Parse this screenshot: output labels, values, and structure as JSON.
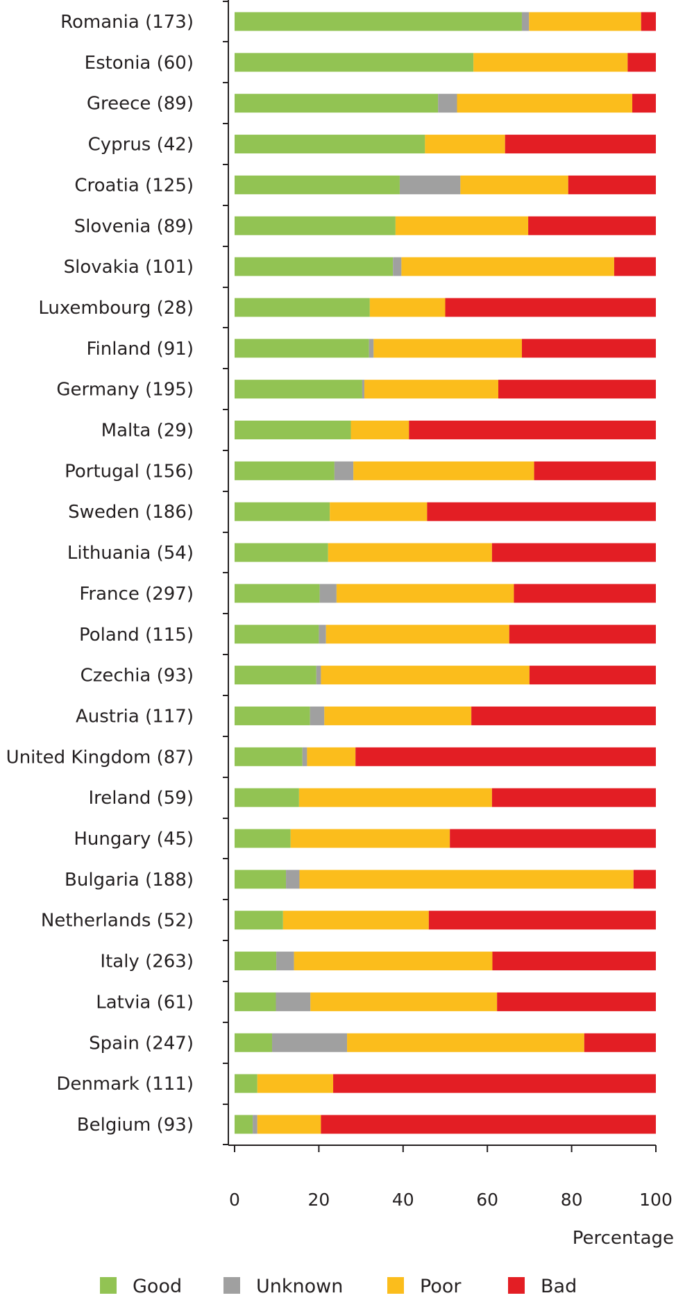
{
  "chart_data": {
    "type": "bar",
    "orientation": "horizontal",
    "stacked": true,
    "categories": [
      "Romania (173)",
      "Estonia (60)",
      "Greece (89)",
      "Cyprus (42)",
      "Croatia (125)",
      "Slovenia (89)",
      "Slovakia (101)",
      "Luxembourg (28)",
      "Finland (91)",
      "Germany (195)",
      "Malta (29)",
      "Portugal (156)",
      "Sweden (186)",
      "Lithuania (54)",
      "France (297)",
      "Poland  (115)",
      "Czechia (93)",
      "Austria (117)",
      "United Kingdom (87)",
      "Ireland (59)",
      "Hungary (45)",
      "Bulgaria (188)",
      "Netherlands (52)",
      "Italy (263)",
      "Latvia (61)",
      "Spain (247)",
      "Denmark (111)",
      "Belgium (93)"
    ],
    "series": [
      {
        "name": "Good",
        "color": "#92c353",
        "values": [
          68.2,
          56.7,
          48.3,
          45.2,
          39.2,
          38.2,
          37.6,
          32.1,
          31.9,
          30.3,
          27.6,
          23.7,
          22.6,
          22.2,
          20.2,
          20.0,
          19.4,
          17.9,
          16.1,
          15.3,
          13.3,
          12.2,
          11.5,
          9.9,
          9.8,
          8.9,
          5.4,
          4.3
        ]
      },
      {
        "name": "Unknown",
        "color": "#a0a0a0",
        "values": [
          1.7,
          0,
          4.5,
          0,
          14.4,
          0,
          2.0,
          0,
          1.1,
          0.5,
          0,
          4.5,
          0,
          0,
          4.0,
          1.7,
          1.1,
          3.4,
          1.1,
          0,
          0,
          3.2,
          0,
          4.2,
          8.2,
          17.8,
          0,
          1.1
        ]
      },
      {
        "name": "Poor",
        "color": "#fbbd1c",
        "values": [
          26.6,
          36.6,
          41.6,
          19.0,
          25.6,
          31.5,
          50.5,
          17.9,
          35.2,
          31.8,
          13.8,
          42.9,
          23.1,
          38.9,
          42.1,
          43.5,
          49.5,
          34.9,
          11.5,
          45.8,
          37.8,
          79.3,
          34.6,
          47.1,
          44.3,
          56.3,
          18.0,
          15.1
        ]
      },
      {
        "name": "Bad",
        "color": "#e31e24",
        "values": [
          3.5,
          6.7,
          5.6,
          35.8,
          20.8,
          30.3,
          9.9,
          50.0,
          31.8,
          37.4,
          58.6,
          28.9,
          54.3,
          38.9,
          33.7,
          34.8,
          30.0,
          43.8,
          71.3,
          38.9,
          48.9,
          5.3,
          53.9,
          38.8,
          37.7,
          17.0,
          76.6,
          79.5
        ]
      }
    ],
    "xlabel": "Percentage",
    "ylabel": "",
    "xlim": [
      0,
      100
    ],
    "xticks": [
      0,
      20,
      40,
      60,
      80,
      100
    ],
    "grid": false,
    "legend_position": "bottom"
  }
}
